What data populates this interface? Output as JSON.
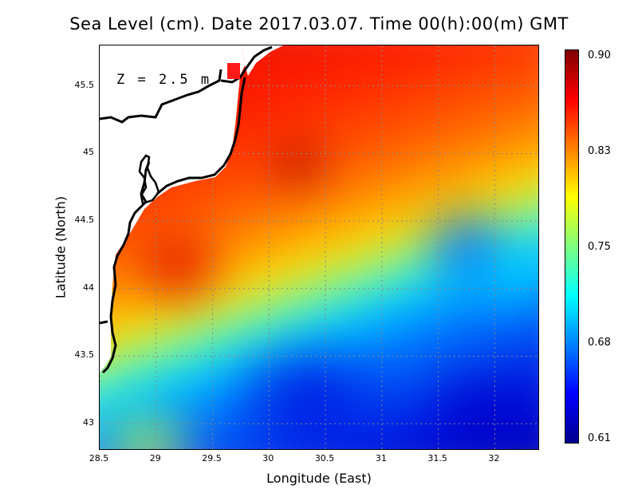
{
  "title": "Sea Level (cm). Date 2017.03.07. Time 00(h):00(m) GMT",
  "annotation": "Z = 2.5 m",
  "x_axis": {
    "label": "Longitude (East)",
    "ticks": [
      "28.5",
      "29",
      "29.5",
      "30",
      "30.5",
      "31",
      "31.5",
      "32"
    ]
  },
  "y_axis": {
    "label": "Latitude (North)",
    "ticks": [
      "45.5",
      "45",
      "44.5",
      "44",
      "43.5",
      "43"
    ]
  },
  "colorbar": {
    "labels": [
      "0.90",
      "0.83",
      "0.75",
      "0.68",
      "0.61"
    ],
    "colors": [
      "#7f0000",
      "#ff0000",
      "#ff8000",
      "#ffff00",
      "#80ff80",
      "#00ffff",
      "#0080ff",
      "#0000ff",
      "#00008f"
    ]
  },
  "map_extent": {
    "lon": [
      28.5,
      32.4
    ],
    "lat": [
      42.8,
      45.8
    ]
  },
  "grid": true
}
